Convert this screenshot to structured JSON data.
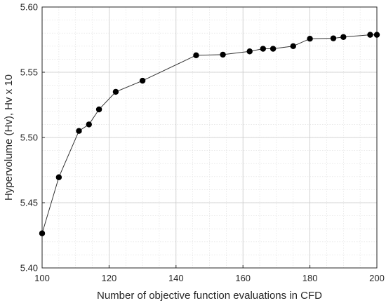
{
  "chart_data": {
    "type": "line",
    "title": "",
    "xlabel": "Number of objective function evaluations in CFD",
    "ylabel": "Hypervolume (Hv), Hv x 10",
    "xlim": [
      100,
      200
    ],
    "ylim": [
      5.4,
      5.6
    ],
    "xticks": [
      100,
      120,
      140,
      160,
      180,
      200
    ],
    "xtick_labels": [
      "100",
      "120",
      "140",
      "160",
      "180",
      "200"
    ],
    "yticks": [
      5.4,
      5.45,
      5.5,
      5.55,
      5.6
    ],
    "ytick_labels": [
      "5.40",
      "5.45",
      "5.50",
      "5.55",
      "5.60"
    ],
    "grid": true,
    "minor_grid": true,
    "series": [
      {
        "color": "#000000",
        "line_color": "#333333",
        "marker": "circle",
        "x": [
          100,
          105,
          111,
          114,
          117,
          122,
          130,
          146,
          154,
          162,
          166,
          169,
          175,
          180,
          187,
          190,
          198,
          200
        ],
        "y": [
          5.4265,
          5.4695,
          5.505,
          5.51,
          5.5215,
          5.535,
          5.5435,
          5.563,
          5.5635,
          5.566,
          5.568,
          5.568,
          5.57,
          5.5757,
          5.576,
          5.577,
          5.5787,
          5.5787
        ]
      }
    ]
  }
}
